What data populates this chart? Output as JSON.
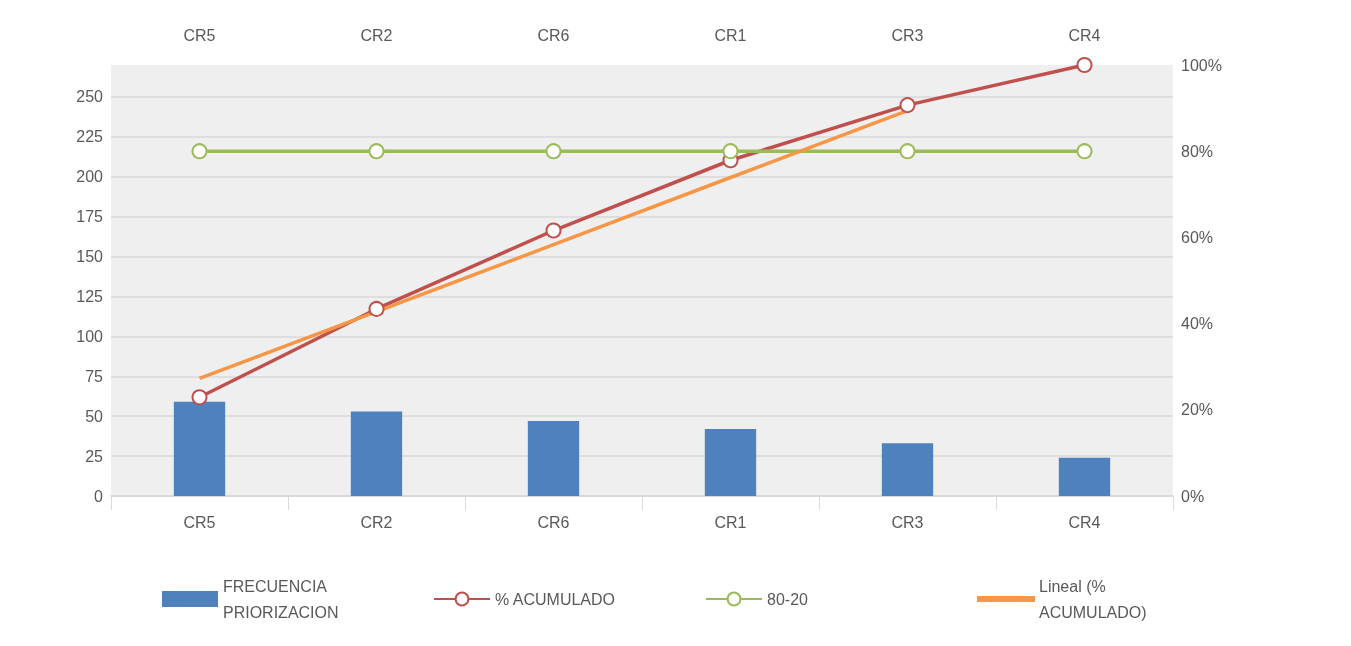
{
  "chart_data": {
    "type": "bar",
    "categories": [
      "CR5",
      "CR2",
      "CR6",
      "CR1",
      "CR3",
      "CR4"
    ],
    "series": [
      {
        "name": "FRECUENCIA PRIORIZACION",
        "color": "#4f81bd",
        "values": [
          59,
          53,
          47,
          42,
          33,
          24
        ]
      },
      {
        "name": "% ACUMULADO",
        "type": "line",
        "axis": "y2",
        "marker": "circle",
        "color": "#c0504d",
        "values": [
          22.9,
          43.4,
          61.6,
          77.9,
          90.7,
          100
        ]
      },
      {
        "name": "80-20",
        "type": "line",
        "axis": "y2",
        "marker": "circle",
        "color": "#9bbb59",
        "values": [
          80,
          80,
          80,
          80,
          80,
          80
        ]
      },
      {
        "name": "Lineal (% ACUMULADO)",
        "type": "line",
        "axis": "y2",
        "marker": "none",
        "color": "#f79646",
        "values": [
          27.3,
          42.8,
          58.3,
          73.9,
          89.4,
          null
        ]
      }
    ],
    "ylim": [
      0,
      270
    ],
    "yticks": [
      0,
      25,
      50,
      75,
      100,
      125,
      150,
      175,
      200,
      225,
      250
    ],
    "y2lim": [
      0,
      100
    ],
    "y2ticks": [
      {
        "value": 0,
        "label": "0%"
      },
      {
        "value": 20,
        "label": "20%"
      },
      {
        "value": 40,
        "label": "40%"
      },
      {
        "value": 60,
        "label": "60%"
      },
      {
        "value": 80,
        "label": "80%"
      },
      {
        "value": 100,
        "label": "100%"
      }
    ],
    "grid": "y",
    "legend": "bottom"
  }
}
